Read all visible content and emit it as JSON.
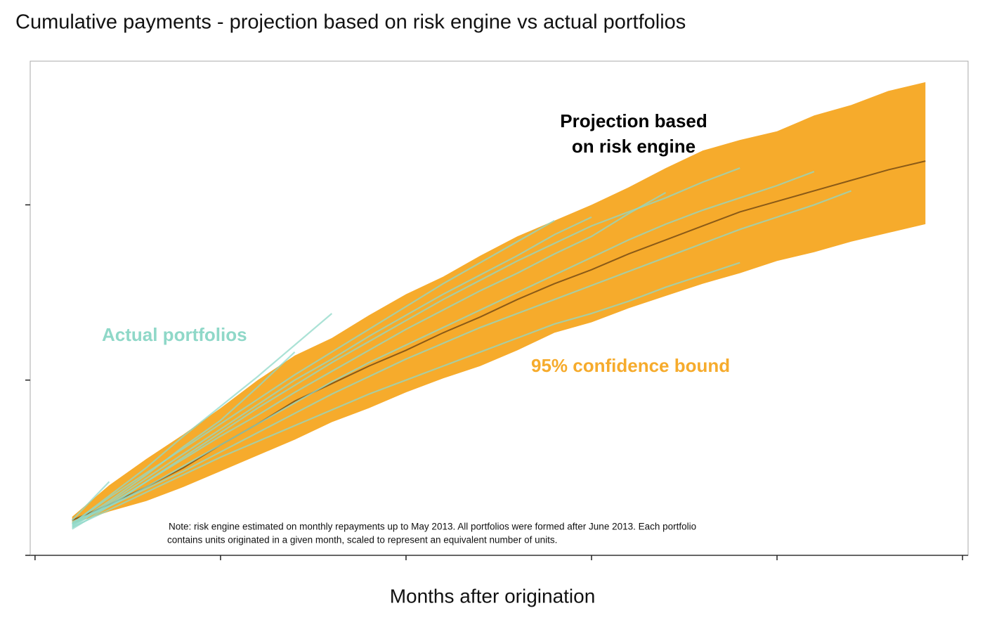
{
  "chart_data": {
    "type": "band-line",
    "title": "Cumulative payments - projection based on risk engine vs actual portfolios",
    "x_label": "Months after origination",
    "x": [
      1,
      2,
      3,
      4,
      5,
      6,
      7,
      8,
      9,
      10,
      11,
      12,
      13,
      14,
      15,
      16,
      17,
      18,
      19,
      20,
      21,
      22,
      23,
      24
    ],
    "band": {
      "color": "#f6ab2c",
      "upper": [
        0.22,
        0.4,
        0.55,
        0.69,
        0.84,
        1.0,
        1.14,
        1.24,
        1.37,
        1.49,
        1.59,
        1.71,
        1.82,
        1.91,
        2.0,
        2.1,
        2.21,
        2.31,
        2.37,
        2.42,
        2.51,
        2.57,
        2.65,
        2.7
      ],
      "lower": [
        0.18,
        0.25,
        0.31,
        0.39,
        0.48,
        0.57,
        0.66,
        0.76,
        0.84,
        0.93,
        1.01,
        1.08,
        1.17,
        1.27,
        1.33,
        1.41,
        1.48,
        1.55,
        1.61,
        1.68,
        1.73,
        1.79,
        1.84,
        1.89
      ]
    },
    "projection": {
      "color": "#8a5a17",
      "values": [
        0.2,
        0.29,
        0.39,
        0.5,
        0.63,
        0.75,
        0.88,
        0.98,
        1.08,
        1.17,
        1.27,
        1.36,
        1.46,
        1.55,
        1.63,
        1.72,
        1.8,
        1.88,
        1.96,
        2.02,
        2.08,
        2.14,
        2.2,
        2.25
      ]
    },
    "portfolios": {
      "color": "#8fd8c8",
      "values": [
        [
          0.18,
          0.34,
          0.5,
          0.68,
          0.85,
          1.02,
          1.2,
          1.38,
          null,
          null,
          null,
          null,
          null,
          null,
          null,
          null,
          null,
          null,
          null,
          null,
          null,
          null,
          null,
          null
        ],
        [
          0.17,
          0.31,
          0.46,
          0.62,
          0.77,
          0.96,
          1.16,
          null,
          null,
          null,
          null,
          null,
          null,
          null,
          null,
          null,
          null,
          null,
          null,
          null,
          null,
          null,
          null,
          null
        ],
        [
          0.16,
          0.3,
          0.44,
          0.58,
          0.72,
          0.86,
          1.0,
          1.12,
          1.25,
          1.37,
          1.49,
          1.6,
          1.71,
          1.83,
          1.93,
          null,
          null,
          null,
          null,
          null,
          null,
          null,
          null,
          null
        ],
        [
          0.15,
          0.28,
          0.42,
          0.56,
          0.7,
          0.84,
          0.97,
          1.1,
          1.22,
          1.34,
          1.46,
          1.57,
          1.68,
          1.78,
          1.88,
          1.96,
          2.04,
          2.13,
          2.21,
          null,
          null,
          null,
          null,
          null
        ],
        [
          0.17,
          0.29,
          0.42,
          0.55,
          0.68,
          0.8,
          0.93,
          1.05,
          1.17,
          1.29,
          1.4,
          1.51,
          1.61,
          1.72,
          1.82,
          1.95,
          2.07,
          null,
          null,
          null,
          null,
          null,
          null,
          null
        ],
        [
          0.18,
          0.28,
          0.39,
          0.51,
          0.63,
          0.75,
          0.87,
          0.99,
          1.1,
          1.2,
          1.3,
          1.4,
          1.5,
          1.6,
          1.7,
          1.8,
          1.89,
          1.97,
          2.04,
          2.11,
          2.19,
          null,
          null,
          null
        ],
        [
          0.19,
          0.28,
          0.38,
          0.48,
          0.59,
          0.7,
          0.81,
          0.92,
          1.02,
          1.12,
          1.21,
          1.3,
          1.38,
          1.46,
          1.54,
          1.62,
          1.7,
          1.78,
          1.86,
          1.93,
          2.0,
          2.08,
          null,
          null
        ],
        [
          0.16,
          0.26,
          0.36,
          0.46,
          0.56,
          0.65,
          0.74,
          0.83,
          0.92,
          1.0,
          1.08,
          1.16,
          1.24,
          1.32,
          1.38,
          1.45,
          1.53,
          1.6,
          1.67,
          null,
          null,
          null,
          null,
          null
        ],
        [
          0.18,
          0.33,
          0.47,
          0.61,
          0.75,
          0.89,
          1.03,
          1.16,
          1.29,
          1.42,
          1.55,
          1.67,
          1.79,
          1.91,
          null,
          null,
          null,
          null,
          null,
          null,
          null,
          null,
          null,
          null
        ],
        [
          0.2,
          0.42,
          null,
          null,
          null,
          null,
          null,
          null,
          null,
          null,
          null,
          null,
          null,
          null,
          null,
          null,
          null,
          null,
          null,
          null,
          null,
          null,
          null,
          null
        ]
      ]
    },
    "annotations": {
      "projection_label": [
        "Projection based",
        "on risk engine"
      ],
      "portfolios_label": "Actual portfolios",
      "band_label": "95% confidence bound",
      "note": [
        "Note: risk engine estimated on monthly repayments up to May 2013. All portfolios were formed after June 2013. Each portfolio",
        "contains units originated in a given month, scaled to represent an equivalent number of units."
      ]
    },
    "xlim": [
      -0.13,
      25.15
    ],
    "ylim": [
      0,
      2.82
    ],
    "xticks": [
      0,
      5,
      10,
      15,
      20,
      25
    ],
    "yticks": [
      0,
      1,
      2
    ]
  }
}
